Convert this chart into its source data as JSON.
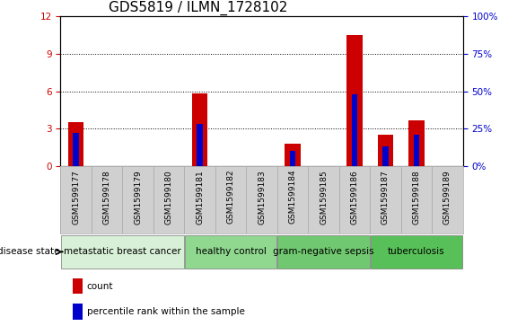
{
  "title": "GDS5819 / ILMN_1728102",
  "samples": [
    "GSM1599177",
    "GSM1599178",
    "GSM1599179",
    "GSM1599180",
    "GSM1599181",
    "GSM1599182",
    "GSM1599183",
    "GSM1599184",
    "GSM1599185",
    "GSM1599186",
    "GSM1599187",
    "GSM1599188",
    "GSM1599189"
  ],
  "counts": [
    3.5,
    0,
    0,
    0,
    5.8,
    0,
    0,
    1.8,
    0,
    10.5,
    2.5,
    3.7,
    0
  ],
  "percentiles": [
    22,
    0,
    0,
    0,
    28,
    0,
    0,
    10,
    0,
    48,
    13,
    21,
    0
  ],
  "ylim_left": [
    0,
    12
  ],
  "ylim_right": [
    0,
    100
  ],
  "yticks_left": [
    0,
    3,
    6,
    9,
    12
  ],
  "yticks_right": [
    0,
    25,
    50,
    75,
    100
  ],
  "red_color": "#cc0000",
  "blue_color": "#0000cc",
  "red_bar_width": 0.5,
  "blue_bar_width": 0.2,
  "groups": [
    {
      "label": "metastatic breast cancer",
      "start": 0,
      "end": 4,
      "color": "#d8f0d8"
    },
    {
      "label": "healthy control",
      "start": 4,
      "end": 7,
      "color": "#90d890"
    },
    {
      "label": "gram-negative sepsis",
      "start": 7,
      "end": 10,
      "color": "#70c870"
    },
    {
      "label": "tuberculosis",
      "start": 10,
      "end": 13,
      "color": "#58c058"
    }
  ],
  "disease_state_label": "disease state",
  "legend_count": "count",
  "legend_percentile": "percentile rank within the sample",
  "title_fontsize": 11,
  "tick_label_fontsize": 6.5,
  "group_label_fontsize": 7.5,
  "axis_tick_fontsize": 7.5,
  "sample_bg_color": "#d0d0d0",
  "plot_bg_color": "#ffffff"
}
